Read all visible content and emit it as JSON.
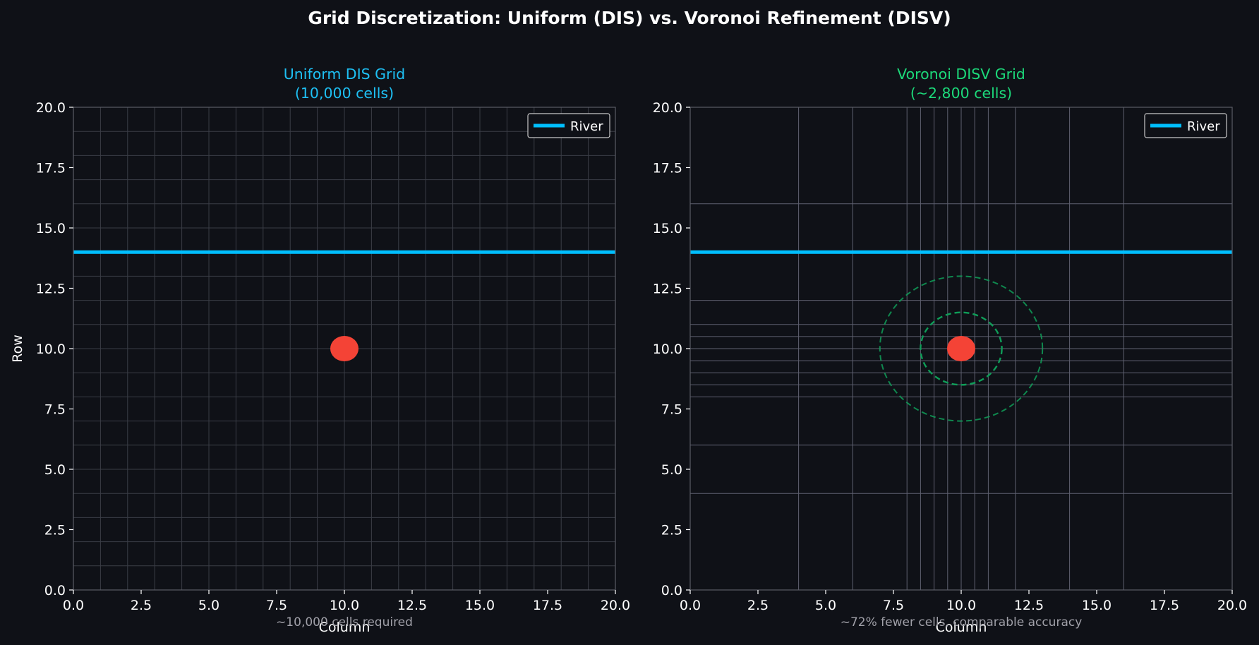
{
  "title": "Grid Discretization: Uniform (DIS) vs. Voronoi Refinement (DISV)",
  "colors": {
    "background": "#0f1117",
    "river": "#00bfff",
    "well": "#f44336",
    "left_title": "#1ec0f4",
    "right_title": "#1cd97a",
    "refine_circle": "#0f9d58",
    "grid_line": "#3a3d46",
    "refined_line": "#5f6170",
    "spine": "#5a5d66"
  },
  "chart_data": [
    {
      "type": "line",
      "title_line1": "Uniform DIS Grid",
      "title_line2": "(10,000 cells)",
      "xlabel": "Column",
      "ylabel": "Row",
      "xlim": [
        0,
        20
      ],
      "ylim": [
        0,
        20
      ],
      "xticks": [
        "0.0",
        "2.5",
        "5.0",
        "7.5",
        "10.0",
        "12.5",
        "15.0",
        "17.5",
        "20.0"
      ],
      "yticks": [
        "0.0",
        "2.5",
        "5.0",
        "7.5",
        "10.0",
        "12.5",
        "15.0",
        "17.5",
        "20.0"
      ],
      "grid_x": [
        1,
        2,
        3,
        4,
        5,
        6,
        7,
        8,
        9,
        10,
        11,
        12,
        13,
        14,
        15,
        16,
        17,
        18,
        19
      ],
      "grid_y": [
        1,
        2,
        3,
        4,
        5,
        6,
        7,
        8,
        9,
        10,
        11,
        12,
        13,
        14,
        15,
        16,
        17,
        18,
        19
      ],
      "series": [
        {
          "name": "River",
          "x": [
            0,
            20
          ],
          "y": [
            14,
            14
          ]
        }
      ],
      "well": {
        "x": 10,
        "y": 10
      },
      "refinement_radii": [],
      "legend": {
        "position": "top-right",
        "entries": [
          "River"
        ]
      },
      "annotation": "~10,000 cells required"
    },
    {
      "type": "line",
      "title_line1": "Voronoi DISV Grid",
      "title_line2": "(~2,800 cells)",
      "xlabel": "Column",
      "ylabel": "",
      "xlim": [
        0,
        20
      ],
      "ylim": [
        0,
        20
      ],
      "xticks": [
        "0.0",
        "2.5",
        "5.0",
        "7.5",
        "10.0",
        "12.5",
        "15.0",
        "17.5",
        "20.0"
      ],
      "yticks": [
        "0.0",
        "2.5",
        "5.0",
        "7.5",
        "10.0",
        "12.5",
        "15.0",
        "17.5",
        "20.0"
      ],
      "grid_x": [
        4,
        6,
        8,
        8.5,
        9,
        9.5,
        10,
        10.5,
        11,
        12,
        14,
        16
      ],
      "grid_y": [
        4,
        6,
        8,
        8.5,
        9,
        9.5,
        10,
        10.5,
        11,
        12,
        16
      ],
      "series": [
        {
          "name": "River",
          "x": [
            0,
            20
          ],
          "y": [
            14,
            14
          ]
        }
      ],
      "well": {
        "x": 10,
        "y": 10
      },
      "refinement_radii": [
        1.5,
        3
      ],
      "legend": {
        "position": "top-right",
        "entries": [
          "River"
        ]
      },
      "annotation": "~72% fewer cells, comparable accuracy"
    }
  ]
}
